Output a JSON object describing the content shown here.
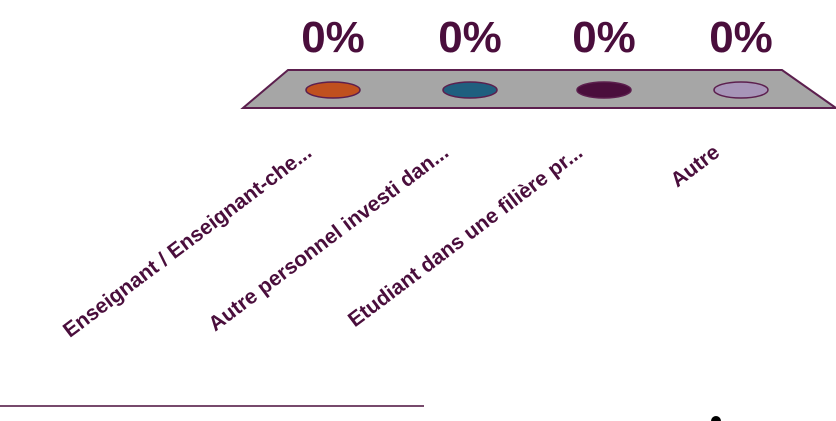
{
  "chart_data": {
    "type": "bar",
    "categories": [
      "Enseignant / Enseignant-che...",
      "Autre personnel investi dan...",
      "Etudiant dans une filière pr...",
      "Autre"
    ],
    "values": [
      0,
      0,
      0,
      0
    ],
    "value_labels": [
      "0%",
      "0%",
      "0%",
      "0%"
    ],
    "unit": "%",
    "title": "",
    "xlabel": "",
    "ylabel": "",
    "ylim": [
      0,
      100
    ],
    "grid": false,
    "legend": "none",
    "three_d": true
  },
  "colors": {
    "floor": "#a6a6a6",
    "floor_edge": "#5c1f4e",
    "text": "#4a0e3c",
    "series": [
      "#c0501e",
      "#1f5f7f",
      "#4a0e3c",
      "#a795b8"
    ]
  }
}
